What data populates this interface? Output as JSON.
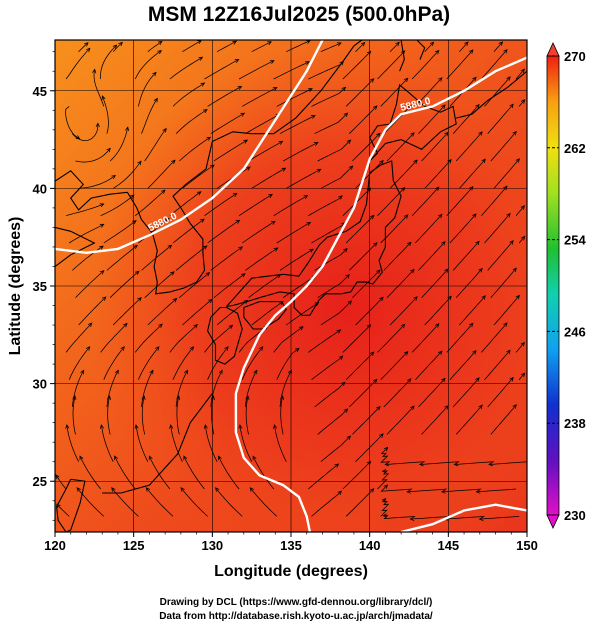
{
  "title": "MSM 12Z16Jul2025 (500.0hPa)",
  "xlabel": "Longitude (degrees)",
  "ylabel": "Latitude (degrees)",
  "credits": [
    "Drawing by DCL (https://www.gfd-dennou.org/library/dcl/)",
    "Data from http://database.rish.kyoto-u.ac.jp/arch/jmadata/"
  ],
  "map": {
    "lon_range": [
      120,
      150
    ],
    "lat_range": [
      22.4,
      47.6
    ],
    "lon_ticks": [
      120,
      125,
      130,
      135,
      140,
      145,
      150
    ],
    "lat_ticks": [
      25,
      30,
      35,
      40,
      45
    ],
    "field": "temperature",
    "colorbar": {
      "range": [
        230,
        270
      ],
      "tick_values": [
        270,
        262,
        254,
        246,
        238,
        230
      ],
      "tick_labels": [
        "270",
        "262",
        "254",
        "246",
        "238",
        "230"
      ]
    },
    "contours": [
      {
        "label": "5880.0",
        "lonlat": [
          [
            120,
            36.9
          ],
          [
            122,
            36.7
          ],
          [
            124,
            36.9
          ],
          [
            126,
            37.6
          ],
          [
            128,
            38.4
          ],
          [
            130,
            39.5
          ],
          [
            132,
            41.0
          ],
          [
            134,
            43.5
          ],
          [
            136,
            46.0
          ],
          [
            137,
            47.6
          ]
        ]
      },
      {
        "label": "5880.0",
        "lonlat": [
          [
            150,
            46.7
          ],
          [
            148,
            46.0
          ],
          [
            146,
            45.0
          ],
          [
            144,
            44.2
          ],
          [
            142,
            43.8
          ],
          [
            141,
            43.0
          ],
          [
            140,
            41.5
          ],
          [
            139,
            39.0
          ],
          [
            138,
            37.5
          ],
          [
            137,
            36.0
          ],
          [
            136,
            35.0
          ],
          [
            135,
            34.2
          ],
          [
            134,
            33.5
          ],
          [
            133,
            32.5
          ],
          [
            132,
            30.8
          ],
          [
            131.5,
            29.5
          ],
          [
            131.5,
            27.5
          ],
          [
            132,
            26.2
          ],
          [
            133,
            25.3
          ],
          [
            134.5,
            24.8
          ],
          [
            135.5,
            24.2
          ],
          [
            136,
            23.2
          ],
          [
            136.2,
            22.4
          ]
        ]
      },
      {
        "label": "",
        "lonlat": [
          [
            142,
            22.4
          ],
          [
            144,
            22.8
          ],
          [
            146,
            23.5
          ],
          [
            148,
            23.8
          ],
          [
            150,
            23.5
          ]
        ]
      }
    ],
    "coastlines": [
      {
        "name": "korea",
        "lonlat": [
          [
            124.6,
            39.8
          ],
          [
            125.2,
            39.0
          ],
          [
            125.5,
            38.4
          ],
          [
            126.2,
            37.7
          ],
          [
            126.5,
            36.8
          ],
          [
            126.3,
            36.0
          ],
          [
            126.5,
            35.2
          ],
          [
            126.4,
            34.6
          ],
          [
            127.3,
            34.7
          ],
          [
            128.2,
            34.9
          ],
          [
            129.0,
            35.2
          ],
          [
            129.5,
            35.8
          ],
          [
            129.4,
            36.7
          ],
          [
            129.4,
            37.4
          ],
          [
            128.6,
            38.2
          ],
          [
            128.0,
            39.0
          ],
          [
            127.5,
            39.6
          ],
          [
            128.3,
            40.2
          ],
          [
            129.6,
            41.0
          ],
          [
            130.0,
            42.4
          ]
        ]
      },
      {
        "name": "china",
        "lonlat": [
          [
            124.6,
            39.8
          ],
          [
            123.5,
            39.7
          ],
          [
            122.3,
            39.5
          ],
          [
            121.5,
            38.9
          ],
          [
            121.0,
            39.5
          ],
          [
            121.8,
            40.2
          ],
          [
            121.0,
            40.9
          ],
          [
            119.5,
            40.1
          ],
          [
            120,
            38.0
          ],
          [
            121.0,
            37.8
          ],
          [
            122.5,
            37.2
          ],
          [
            121.0,
            36.6
          ],
          [
            120.0,
            36.0
          ]
        ]
      },
      {
        "name": "taiwan",
        "lonlat": [
          [
            121.0,
            25.1
          ],
          [
            121.9,
            25.0
          ],
          [
            121.6,
            23.9
          ],
          [
            121.0,
            22.5
          ],
          [
            120.7,
            22.4
          ],
          [
            120.2,
            23.0
          ],
          [
            120.1,
            23.7
          ],
          [
            120.7,
            24.6
          ],
          [
            121.0,
            25.1
          ]
        ]
      },
      {
        "name": "kyushu",
        "lonlat": [
          [
            130.9,
            33.9
          ],
          [
            131.6,
            33.6
          ],
          [
            131.9,
            32.8
          ],
          [
            131.4,
            31.4
          ],
          [
            130.8,
            31.0
          ],
          [
            130.2,
            31.2
          ],
          [
            130.2,
            32.0
          ],
          [
            129.7,
            32.7
          ],
          [
            129.9,
            33.4
          ],
          [
            130.5,
            33.9
          ],
          [
            130.9,
            33.9
          ]
        ]
      },
      {
        "name": "shikoku",
        "lonlat": [
          [
            132.0,
            33.9
          ],
          [
            133.0,
            34.2
          ],
          [
            134.4,
            34.2
          ],
          [
            134.7,
            33.8
          ],
          [
            134.2,
            33.3
          ],
          [
            133.2,
            32.8
          ],
          [
            132.6,
            32.8
          ],
          [
            132.0,
            33.4
          ],
          [
            132.0,
            33.9
          ]
        ]
      },
      {
        "name": "honshu",
        "lonlat": [
          [
            130.9,
            33.95
          ],
          [
            131.4,
            34.4
          ],
          [
            132.5,
            35.4
          ],
          [
            133.5,
            35.5
          ],
          [
            134.5,
            35.6
          ],
          [
            135.5,
            35.5
          ],
          [
            136.1,
            36.2
          ],
          [
            136.8,
            37.1
          ],
          [
            137.3,
            37.5
          ],
          [
            138.5,
            37.8
          ],
          [
            139.4,
            38.3
          ],
          [
            139.8,
            39.2
          ],
          [
            139.9,
            40.0
          ],
          [
            140.0,
            40.8
          ],
          [
            140.7,
            41.2
          ],
          [
            141.4,
            41.4
          ],
          [
            141.5,
            40.4
          ],
          [
            142.0,
            39.6
          ],
          [
            141.6,
            38.5
          ],
          [
            141.0,
            38.0
          ],
          [
            141.0,
            37.0
          ],
          [
            140.6,
            36.3
          ],
          [
            140.8,
            35.7
          ],
          [
            140.2,
            35.1
          ],
          [
            139.8,
            35.2
          ],
          [
            139.2,
            35.2
          ],
          [
            138.8,
            34.7
          ],
          [
            138.2,
            34.6
          ],
          [
            137.2,
            34.6
          ],
          [
            136.8,
            34.3
          ],
          [
            136.2,
            33.5
          ],
          [
            135.7,
            33.5
          ],
          [
            135.2,
            33.9
          ],
          [
            135.2,
            34.6
          ],
          [
            134.3,
            34.7
          ],
          [
            133.0,
            34.4
          ],
          [
            132.2,
            34.2
          ],
          [
            131.3,
            34.0
          ],
          [
            130.9,
            33.95
          ]
        ]
      },
      {
        "name": "hokkaido",
        "lonlat": [
          [
            140.0,
            41.4
          ],
          [
            140.5,
            41.8
          ],
          [
            140.0,
            42.6
          ],
          [
            140.5,
            43.2
          ],
          [
            141.3,
            43.3
          ],
          [
            141.7,
            44.3
          ],
          [
            141.9,
            45.3
          ],
          [
            142.5,
            44.9
          ],
          [
            143.5,
            44.2
          ],
          [
            144.5,
            43.9
          ],
          [
            145.3,
            44.2
          ],
          [
            145.5,
            43.3
          ],
          [
            144.5,
            42.9
          ],
          [
            143.3,
            42.0
          ],
          [
            142.0,
            42.5
          ],
          [
            141.0,
            42.3
          ],
          [
            140.0,
            41.4
          ]
        ]
      },
      {
        "name": "sakhalin",
        "lonlat": [
          [
            141.9,
            46.0
          ],
          [
            142.2,
            46.6
          ],
          [
            142.0,
            47.6
          ]
        ]
      },
      {
        "name": "sakhalin-east",
        "lonlat": [
          [
            143.2,
            46.6
          ],
          [
            143.5,
            47.2
          ],
          [
            143.0,
            47.6
          ]
        ]
      },
      {
        "name": "kuriles",
        "lonlat": [
          [
            145.5,
            43.6
          ],
          [
            146.5,
            43.8
          ],
          [
            147.5,
            44.5
          ],
          [
            148.8,
            45.2
          ],
          [
            150.0,
            46.0
          ]
        ]
      },
      {
        "name": "russia-coast",
        "lonlat": [
          [
            130.0,
            42.4
          ],
          [
            131.3,
            42.9
          ],
          [
            132.5,
            42.8
          ],
          [
            133.9,
            42.8
          ],
          [
            135.3,
            43.6
          ],
          [
            136.9,
            45.0
          ],
          [
            138.3,
            46.5
          ],
          [
            139.0,
            47.3
          ],
          [
            139.5,
            47.6
          ]
        ]
      },
      {
        "name": "ryukyu",
        "lonlat": [
          [
            130.0,
            29.5
          ],
          [
            128.6,
            28.0
          ],
          [
            128.0,
            26.8
          ],
          [
            127.8,
            26.4
          ],
          [
            126.0,
            24.8
          ],
          [
            124.2,
            24.4
          ],
          [
            123.0,
            24.4
          ]
        ]
      }
    ],
    "colors": {
      "field_warm": "#f0421c",
      "field_hot": "#e8241a",
      "field_cool": "#f68a1c",
      "contour": "#ffffff",
      "streamline": "#000000"
    }
  }
}
